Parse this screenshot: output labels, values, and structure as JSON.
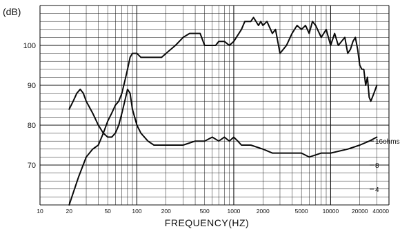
{
  "chart_data": {
    "type": "line",
    "ylabel": "(dB)",
    "xlabel": "FREQUENCY(HZ)",
    "x_scale": "log",
    "xlim": [
      10,
      40000
    ],
    "ylim": [
      60,
      110
    ],
    "grid": true,
    "x_tick_labels": [
      "10",
      "20",
      "50",
      "100",
      "200",
      "500",
      "1000",
      "2000",
      "5000",
      "10000",
      "20000",
      "40000"
    ],
    "x_ticks": [
      10,
      20,
      50,
      100,
      200,
      500,
      1000,
      2000,
      5000,
      10000,
      20000,
      40000
    ],
    "y_tick_labels": [
      "70",
      "80",
      "90",
      "100"
    ],
    "y_ticks": [
      70,
      80,
      90,
      100
    ],
    "impedance_scale_labels": [
      {
        "text": "16ohms",
        "y": 76
      },
      {
        "text": "8",
        "y": 70
      },
      {
        "text": "4",
        "y": 64
      }
    ],
    "series": [
      {
        "points": [
          [
            20,
            60
          ],
          [
            22,
            63
          ],
          [
            25,
            67
          ],
          [
            30,
            72
          ],
          [
            35,
            74
          ],
          [
            40,
            75
          ],
          [
            45,
            78
          ],
          [
            50,
            81
          ],
          [
            55,
            83
          ],
          [
            60,
            85
          ],
          [
            65,
            86
          ],
          [
            70,
            88
          ],
          [
            75,
            91
          ],
          [
            80,
            94
          ],
          [
            85,
            97
          ],
          [
            90,
            98
          ],
          [
            100,
            98
          ],
          [
            110,
            97
          ],
          [
            130,
            97
          ],
          [
            150,
            97
          ],
          [
            180,
            97
          ],
          [
            200,
            98
          ],
          [
            250,
            100
          ],
          [
            300,
            102
          ],
          [
            350,
            103
          ],
          [
            400,
            103
          ],
          [
            450,
            103
          ],
          [
            500,
            100
          ],
          [
            600,
            100
          ],
          [
            650,
            100
          ],
          [
            700,
            101
          ],
          [
            800,
            101
          ],
          [
            900,
            100
          ],
          [
            1000,
            101
          ],
          [
            1200,
            104
          ],
          [
            1300,
            106
          ],
          [
            1500,
            106
          ],
          [
            1600,
            107
          ],
          [
            1800,
            105
          ],
          [
            1900,
            106
          ],
          [
            2000,
            105
          ],
          [
            2200,
            106
          ],
          [
            2500,
            103
          ],
          [
            2700,
            104
          ],
          [
            3000,
            98
          ],
          [
            3500,
            100
          ],
          [
            4000,
            103
          ],
          [
            4500,
            105
          ],
          [
            5000,
            104
          ],
          [
            5500,
            105
          ],
          [
            6000,
            103
          ],
          [
            6500,
            106
          ],
          [
            7000,
            105
          ],
          [
            8000,
            102
          ],
          [
            9000,
            104
          ],
          [
            10000,
            100
          ],
          [
            11000,
            103
          ],
          [
            12000,
            100
          ],
          [
            14000,
            102
          ],
          [
            15000,
            98
          ],
          [
            16000,
            99
          ],
          [
            17000,
            101
          ],
          [
            18000,
            102
          ],
          [
            19000,
            99
          ],
          [
            20000,
            95
          ],
          [
            21000,
            94
          ],
          [
            22000,
            94
          ],
          [
            23000,
            90
          ],
          [
            24000,
            92
          ],
          [
            25000,
            87
          ],
          [
            26000,
            86
          ],
          [
            28000,
            88
          ],
          [
            30000,
            90
          ]
        ]
      },
      {
        "points": [
          [
            20,
            84
          ],
          [
            22,
            86
          ],
          [
            24,
            88
          ],
          [
            26,
            89
          ],
          [
            28,
            88
          ],
          [
            30,
            86
          ],
          [
            35,
            83
          ],
          [
            40,
            80
          ],
          [
            45,
            78
          ],
          [
            50,
            77
          ],
          [
            55,
            77
          ],
          [
            60,
            78
          ],
          [
            65,
            80
          ],
          [
            70,
            83
          ],
          [
            75,
            86
          ],
          [
            80,
            89
          ],
          [
            85,
            88
          ],
          [
            90,
            84
          ],
          [
            100,
            80
          ],
          [
            110,
            78
          ],
          [
            130,
            76
          ],
          [
            150,
            75
          ],
          [
            200,
            75
          ],
          [
            300,
            75
          ],
          [
            400,
            76
          ],
          [
            500,
            76
          ],
          [
            600,
            77
          ],
          [
            700,
            76
          ],
          [
            800,
            77
          ],
          [
            900,
            76
          ],
          [
            1000,
            77
          ],
          [
            1100,
            76
          ],
          [
            1200,
            75
          ],
          [
            1500,
            75
          ],
          [
            2000,
            74
          ],
          [
            2500,
            73
          ],
          [
            3000,
            73
          ],
          [
            4000,
            73
          ],
          [
            5000,
            73
          ],
          [
            6000,
            72
          ],
          [
            8000,
            73
          ],
          [
            10000,
            73
          ],
          [
            15000,
            74
          ],
          [
            20000,
            75
          ],
          [
            25000,
            76
          ],
          [
            30000,
            77
          ]
        ]
      }
    ]
  }
}
